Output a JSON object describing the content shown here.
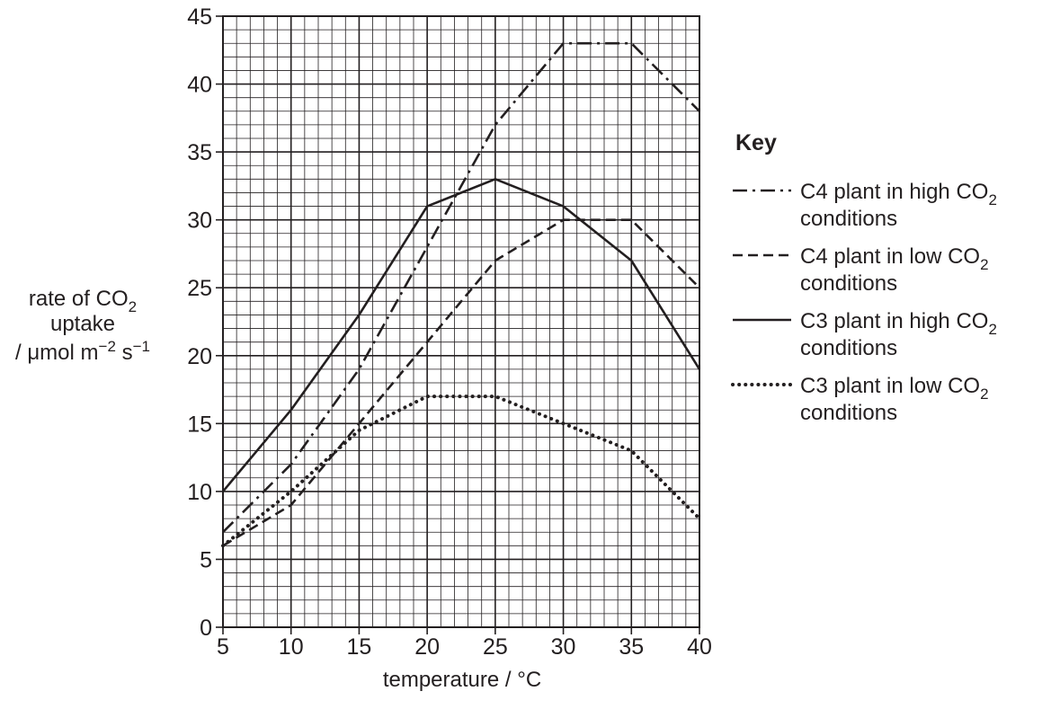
{
  "chart_data": {
    "type": "line",
    "xlabel": "temperature / °C",
    "ylabel": {
      "line1_main": "rate of CO",
      "line1_sub": "2",
      "line2": "uptake",
      "line3_a": "/ μmol m",
      "line3_exp1": "−2",
      "line3_b": " s",
      "line3_exp2": "−1"
    },
    "xlim": [
      5,
      40
    ],
    "ylim": [
      0,
      45
    ],
    "x_ticks": [
      "5",
      "10",
      "15",
      "20",
      "25",
      "30",
      "35",
      "40"
    ],
    "y_ticks": [
      "0",
      "5",
      "10",
      "15",
      "20",
      "25",
      "30",
      "35",
      "40",
      "45"
    ],
    "grid": true,
    "legend_placement": "right",
    "legend_title": "Key",
    "series": [
      {
        "name": "C4 plant in high CO2 conditions",
        "label_main": "C4 plant in high CO",
        "label_sub": "2",
        "label_line2": "conditions",
        "style": "dashdot",
        "x": [
          5,
          10,
          15,
          20,
          25,
          30,
          35,
          40
        ],
        "values": [
          7,
          12,
          19,
          28,
          37,
          43,
          43,
          38
        ]
      },
      {
        "name": "C4 plant in low CO2 conditions",
        "label_main": "C4 plant in low CO",
        "label_sub": "2",
        "label_line2": "conditions",
        "style": "dashed",
        "x": [
          5,
          10,
          15,
          20,
          25,
          30,
          35,
          40
        ],
        "values": [
          6,
          9,
          15,
          21,
          27,
          30,
          30,
          25
        ]
      },
      {
        "name": "C3 plant in high CO2 conditions",
        "label_main": "C3 plant in high CO",
        "label_sub": "2",
        "label_line2": "conditions",
        "style": "solid",
        "x": [
          5,
          10,
          15,
          20,
          25,
          30,
          35,
          40
        ],
        "values": [
          10,
          16,
          23,
          31,
          33,
          31,
          27,
          19
        ]
      },
      {
        "name": "C3 plant in low CO2 conditions",
        "label_main": "C3 plant in low CO",
        "label_sub": "2",
        "label_line2": "conditions",
        "style": "dotted",
        "x": [
          5,
          10,
          15,
          20,
          22.5,
          25,
          30,
          35,
          40
        ],
        "values": [
          6,
          10,
          14.5,
          17,
          17,
          17,
          15,
          13,
          8
        ]
      }
    ]
  }
}
